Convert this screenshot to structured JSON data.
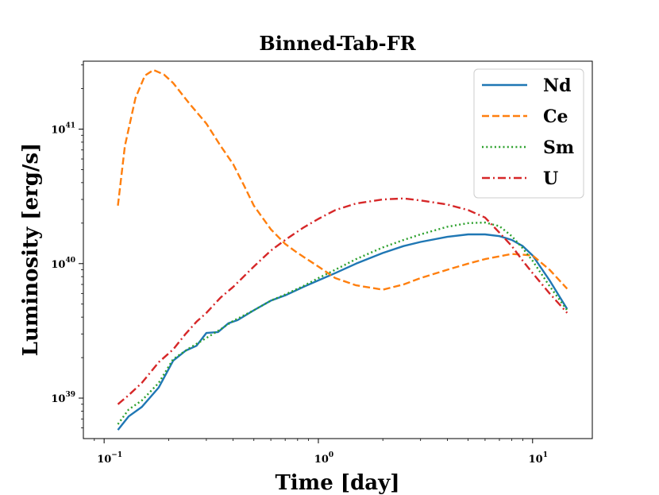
{
  "chart_data": {
    "type": "line",
    "title": "Binned-Tab-FR",
    "xlabel": "Time [day]",
    "ylabel": "Luminosity [erg/s]",
    "xscale": "log",
    "yscale": "log",
    "xlim": [
      0.08,
      19
    ],
    "ylim": [
      5e+38,
      3.2e+41
    ],
    "grid": false,
    "legend_position": "top-right",
    "x_ticks": [
      {
        "value": 0.1,
        "base": "10",
        "exp": "−1"
      },
      {
        "value": 1,
        "base": "10",
        "exp": "0"
      },
      {
        "value": 10,
        "base": "10",
        "exp": "1"
      }
    ],
    "y_ticks": [
      {
        "value": 1e+39,
        "base": "10",
        "exp": "39"
      },
      {
        "value": 1e+40,
        "base": "10",
        "exp": "40"
      },
      {
        "value": 1e+41,
        "base": "10",
        "exp": "41"
      }
    ],
    "series": [
      {
        "name": "Nd",
        "color": "#1f77b4",
        "dash": "solid",
        "x": [
          0.116,
          0.13,
          0.15,
          0.18,
          0.21,
          0.24,
          0.27,
          0.3,
          0.34,
          0.38,
          0.42,
          0.5,
          0.6,
          0.7,
          0.85,
          1.0,
          1.2,
          1.5,
          2.0,
          2.5,
          3.0,
          4.0,
          5.0,
          6.0,
          7.0,
          8.0,
          9.0,
          10.0,
          12.0,
          14.5
        ],
        "values": [
          5.8e+38,
          7.3e+38,
          8.6e+38,
          1.2e+39,
          1.9e+39,
          2.25e+39,
          2.45e+39,
          3.05e+39,
          3.1e+39,
          3.6e+39,
          3.8e+39,
          4.5e+39,
          5.3e+39,
          5.8e+39,
          6.7e+39,
          7.5e+39,
          8.5e+39,
          1e+40,
          1.2e+40,
          1.35e+40,
          1.45e+40,
          1.58e+40,
          1.65e+40,
          1.65e+40,
          1.6e+40,
          1.5e+40,
          1.35e+40,
          1.15e+40,
          7.5e+39,
          4.6e+39
        ]
      },
      {
        "name": "Ce",
        "color": "#ff7f0e",
        "dash": "dashed",
        "x": [
          0.116,
          0.125,
          0.14,
          0.155,
          0.17,
          0.19,
          0.21,
          0.25,
          0.3,
          0.35,
          0.4,
          0.45,
          0.5,
          0.6,
          0.7,
          0.8,
          1.0,
          1.2,
          1.5,
          2.0,
          2.5,
          3.0,
          4.0,
          5.0,
          6.0,
          8.0,
          10.0,
          12.0,
          14.5
        ],
        "values": [
          2.7e+40,
          7.5e+40,
          1.7e+41,
          2.5e+41,
          2.75e+41,
          2.55e+41,
          2.2e+41,
          1.55e+41,
          1.1e+41,
          7.5e+40,
          5.5e+40,
          3.8e+40,
          2.7e+40,
          1.8e+40,
          1.4e+40,
          1.2e+40,
          9.5e+39,
          7.8e+39,
          6.9e+39,
          6.4e+39,
          7e+39,
          7.8e+39,
          9e+39,
          1e+40,
          1.08e+40,
          1.18e+40,
          1.15e+40,
          9e+39,
          6.5e+39
        ]
      },
      {
        "name": "Sm",
        "color": "#2ca02c",
        "dash": "dotted",
        "x": [
          0.116,
          0.13,
          0.15,
          0.18,
          0.21,
          0.25,
          0.3,
          0.35,
          0.4,
          0.5,
          0.6,
          0.7,
          0.85,
          1.0,
          1.2,
          1.5,
          2.0,
          2.5,
          3.0,
          4.0,
          5.0,
          6.0,
          7.0,
          8.0,
          9.0,
          10.0,
          12.0,
          14.5
        ],
        "values": [
          6.4e+38,
          8.2e+38,
          9.6e+38,
          1.3e+39,
          1.95e+39,
          2.35e+39,
          2.8e+39,
          3.25e+39,
          3.75e+39,
          4.5e+39,
          5.3e+39,
          5.9e+39,
          6.8e+39,
          7.8e+39,
          9e+39,
          1.08e+40,
          1.32e+40,
          1.5e+40,
          1.65e+40,
          1.88e+40,
          2e+40,
          2.02e+40,
          1.9e+40,
          1.6e+40,
          1.3e+40,
          1.05e+40,
          6.8e+39,
          4.5e+39
        ]
      },
      {
        "name": "U",
        "color": "#d62728",
        "dash": "dashdot",
        "x": [
          0.116,
          0.13,
          0.15,
          0.18,
          0.21,
          0.24,
          0.27,
          0.3,
          0.35,
          0.4,
          0.5,
          0.6,
          0.7,
          0.85,
          1.0,
          1.2,
          1.5,
          2.0,
          2.5,
          3.0,
          4.0,
          5.0,
          6.0,
          7.0,
          8.0,
          9.0,
          10.0,
          12.0,
          14.5
        ],
        "values": [
          9e+38,
          1.05e+39,
          1.3e+39,
          1.85e+39,
          2.3e+39,
          3e+39,
          3.7e+39,
          4.3e+39,
          5.6e+39,
          6.7e+39,
          9.5e+39,
          1.25e+40,
          1.5e+40,
          1.85e+40,
          2.15e+40,
          2.5e+40,
          2.8e+40,
          3e+40,
          3.05e+40,
          2.95e+40,
          2.75e+40,
          2.5e+40,
          2.2e+40,
          1.7e+40,
          1.35e+40,
          1.05e+40,
          8.5e+39,
          6e+39,
          4.3e+39
        ]
      }
    ]
  }
}
